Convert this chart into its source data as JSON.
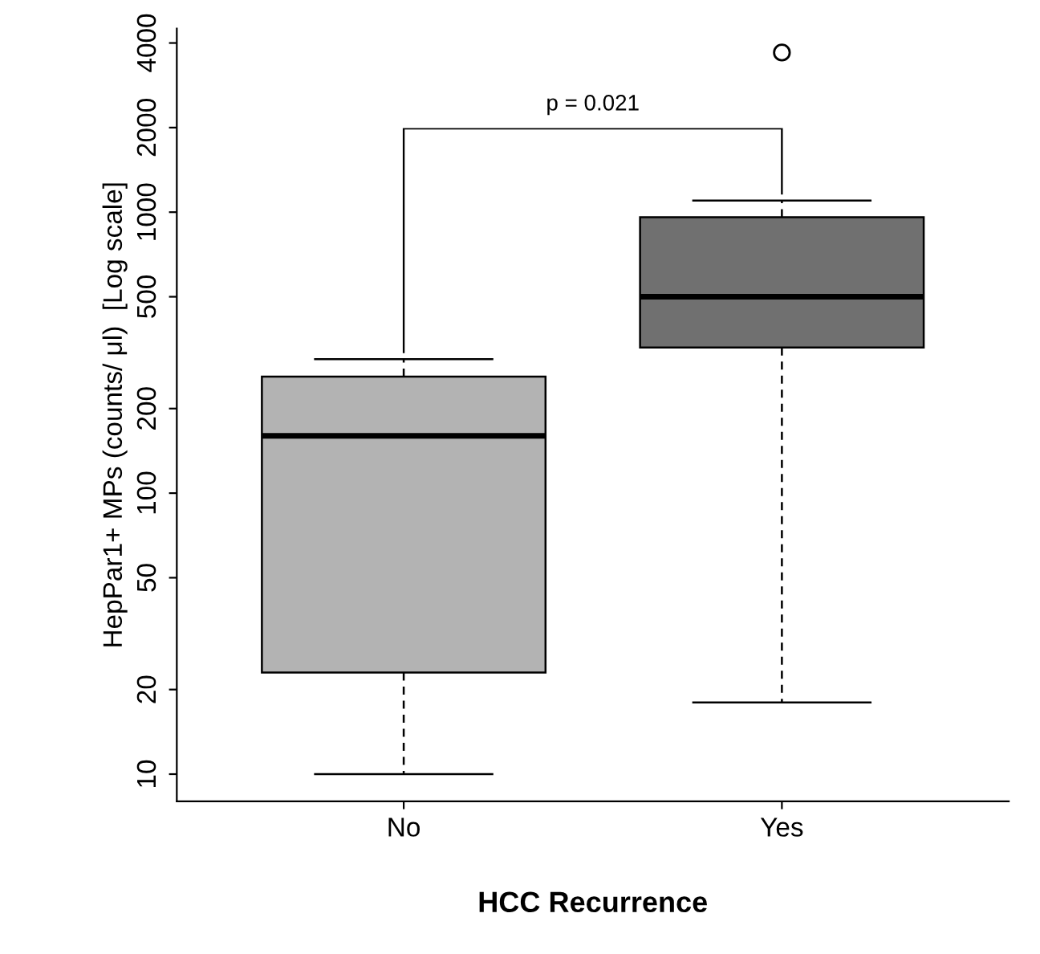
{
  "chart_data": {
    "type": "box",
    "xlabel": "HCC Recurrence",
    "ylabel": "HepPar1+ MPs (counts/ μl)  [Log scale]",
    "categories": [
      "No",
      "Yes"
    ],
    "boxes": [
      {
        "low": 10,
        "q1": 23,
        "median": 160,
        "q3": 260,
        "high": 300
      },
      {
        "low": 18,
        "q1": 330,
        "median": 500,
        "q3": 960,
        "high": 1100,
        "outliers": [
          3700
        ]
      }
    ],
    "colors": [
      "#b3b3b3",
      "#707070"
    ],
    "log": true,
    "ylim": [
      8,
      4500
    ],
    "yticks": [
      10,
      20,
      50,
      100,
      200,
      500,
      1000,
      2000,
      4000
    ],
    "grid": false,
    "legend": false,
    "annotations": [
      "p = 0.021"
    ]
  }
}
